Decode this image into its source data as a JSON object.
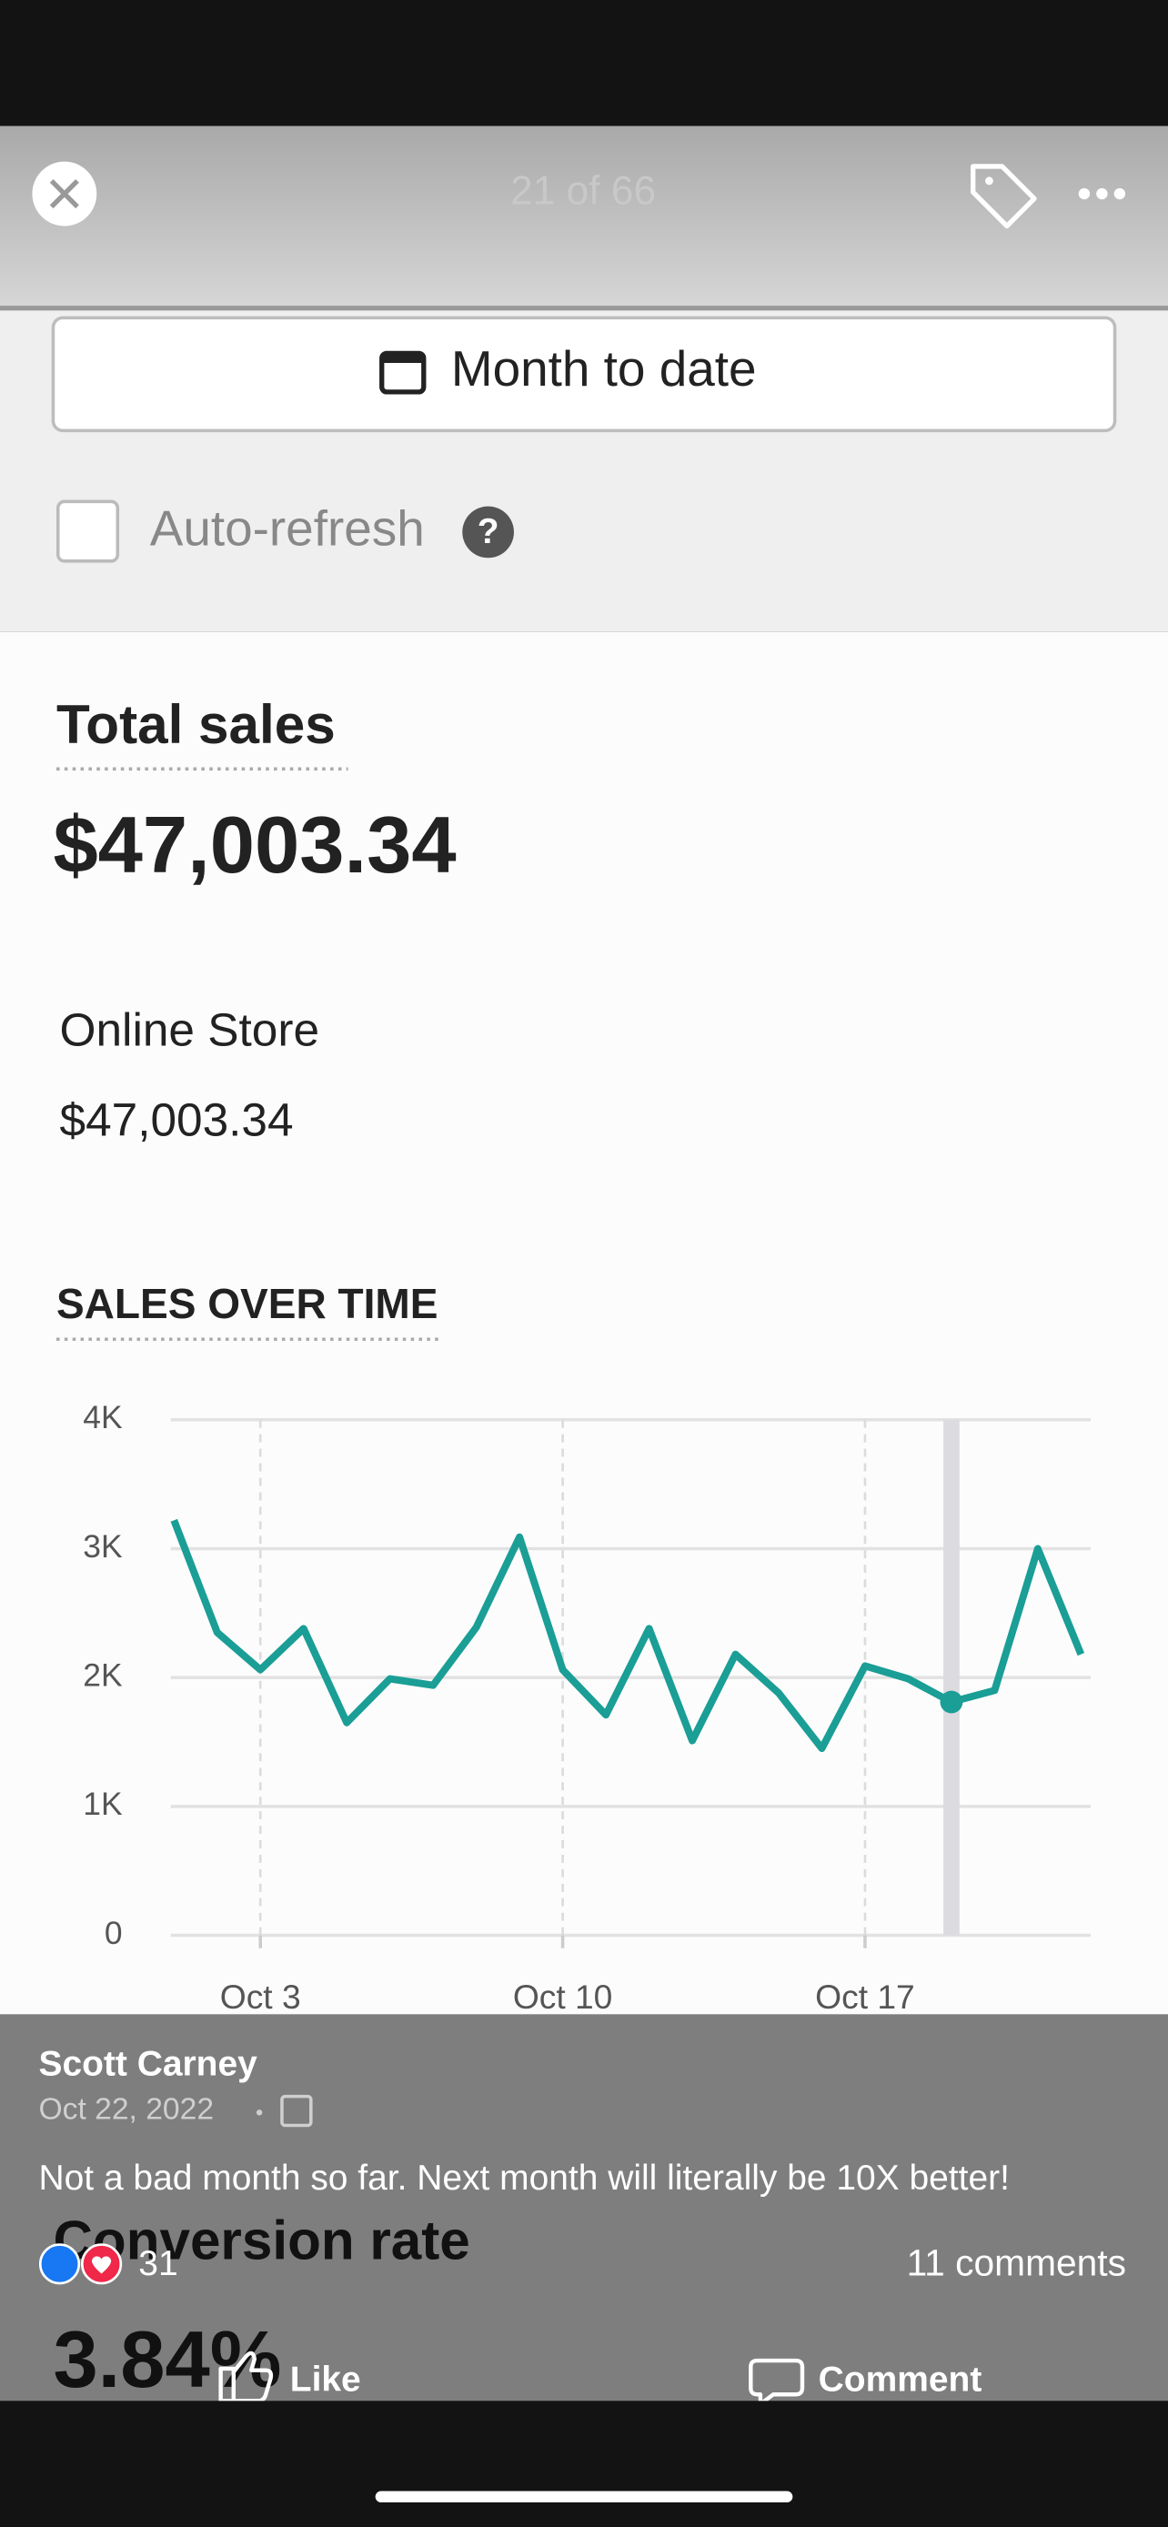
{
  "header": {
    "counter": "21 of 66"
  },
  "filters": {
    "date_range": "Month to date",
    "auto_refresh": "Auto-refresh"
  },
  "summary": {
    "title": "Total sales",
    "total": "$47,003.34",
    "channel": "Online Store",
    "channel_total": "$47,003.34"
  },
  "chart_data": {
    "type": "line",
    "title": "SALES OVER TIME",
    "categories": [
      null,
      null,
      "Oct 3",
      null,
      null,
      null,
      null,
      null,
      null,
      "Oct 10",
      null,
      null,
      null,
      null,
      null,
      null,
      "Oct 17",
      null,
      null,
      null,
      null,
      null
    ],
    "series": [
      {
        "name": "Sales",
        "color": "#1a9e96",
        "values": [
          3220,
          2350,
          2060,
          2380,
          1650,
          1990,
          1940,
          2390,
          3090,
          2060,
          1710,
          2380,
          1510,
          2180,
          1880,
          1450,
          2090,
          1990,
          1810,
          1900,
          3000,
          2180
        ]
      }
    ],
    "ylim": [
      0,
      4000
    ],
    "yticks": [
      0,
      {
        "value": 1000,
        "label": "1K"
      },
      {
        "value": 2000,
        "label": "2K"
      },
      {
        "value": 3000,
        "label": "3K"
      },
      {
        "value": 4000,
        "label": "4K"
      }
    ],
    "grid": true,
    "highlight_index": 18
  },
  "next_card": {
    "title": "Conversion rate",
    "value": "3.84%"
  },
  "post": {
    "author": "Scott Carney",
    "date": "Oct 22, 2022",
    "caption": "Not a bad month so far. Next month will literally be 10X better!",
    "reactions": "31",
    "comments": "11 comments",
    "like": "Like",
    "comment": "Comment"
  }
}
